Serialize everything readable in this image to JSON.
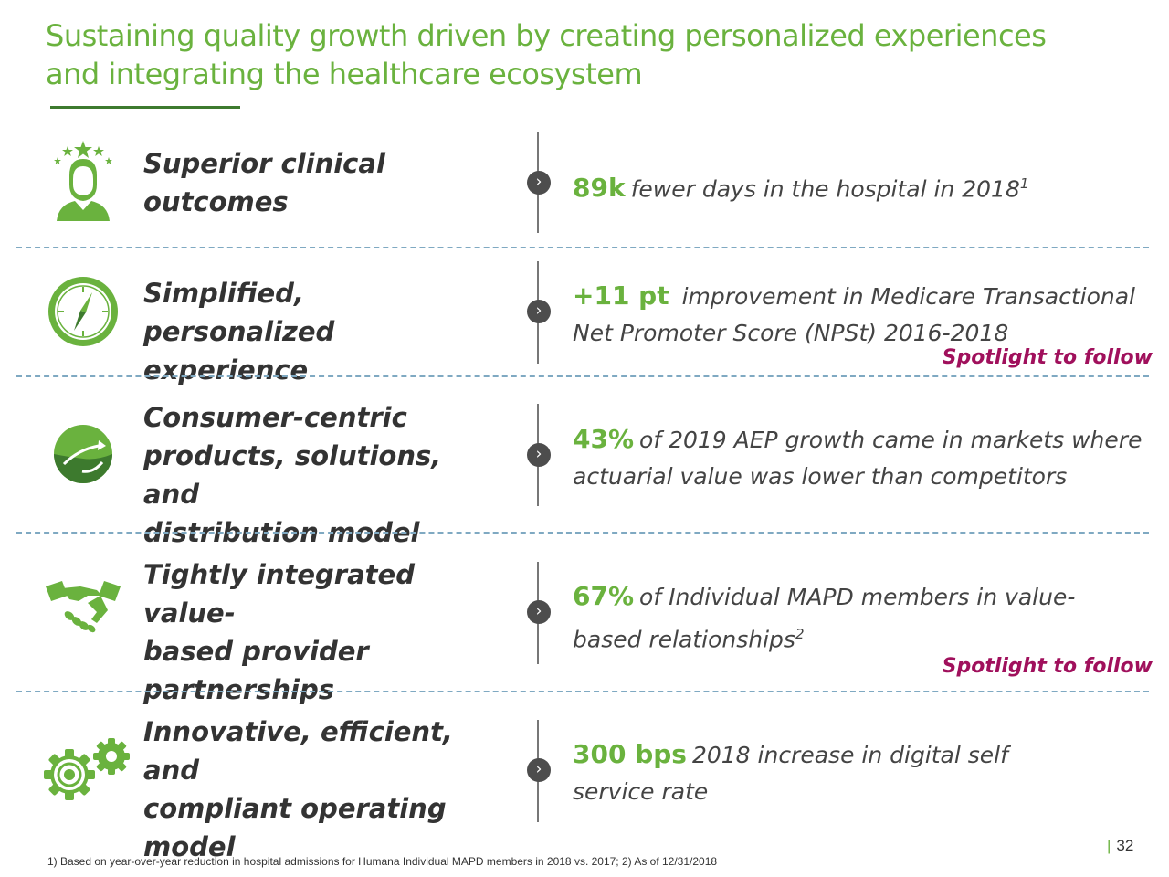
{
  "title": {
    "line1": "Sustaining quality growth driven by creating personalized experiences",
    "line2": "and integrating the healthcare ecosystem"
  },
  "rows": [
    {
      "icon": "person-stars-icon",
      "label": [
        "Superior clinical",
        "outcomes",
        ""
      ],
      "num": "89k",
      "text1": "fewer days in the hospital in 2018",
      "sup": "1",
      "text2": "",
      "spot": ""
    },
    {
      "icon": "compass-icon",
      "label": [
        "Simplified, personalized",
        "experience",
        ""
      ],
      "num": "+11 pt",
      "text1": "improvement in Medicare Transactional",
      "sup": "",
      "text2": "Net Promoter Score (NPSt) 2016-2018",
      "spot": "Spotlight to follow"
    },
    {
      "icon": "globe-arrows-icon",
      "label": [
        "Consumer-centric",
        "products, solutions, and",
        "distribution model"
      ],
      "num": "43%",
      "text1": "of 2019 AEP growth came in markets where",
      "sup": "",
      "text2": "actuarial value was lower than competitors",
      "spot": ""
    },
    {
      "icon": "handshake-icon",
      "label": [
        "Tightly integrated value-",
        "based provider",
        "partnerships"
      ],
      "num": "67%",
      "text1": "of Individual MAPD members in value-",
      "sup": "2",
      "text2": "based relationships",
      "spot": "Spotlight to follow"
    },
    {
      "icon": "gears-icon",
      "label": [
        "Innovative, efficient, and",
        "compliant operating",
        "model"
      ],
      "num": "300 bps",
      "text1": "2018 increase in digital self",
      "sup": "",
      "text2": "service rate",
      "spot": ""
    }
  ],
  "footnote": "1) Based on year-over-year reduction in hospital admissions for Humana Individual MAPD members in 2018 vs. 2017; 2) As of 12/31/2018",
  "page_number": "32",
  "colors": {
    "accent_green": "#6ab23e",
    "dark_green": "#3d7a2e",
    "spotlight": "#a0105c",
    "divider": "#7fa9c2"
  }
}
